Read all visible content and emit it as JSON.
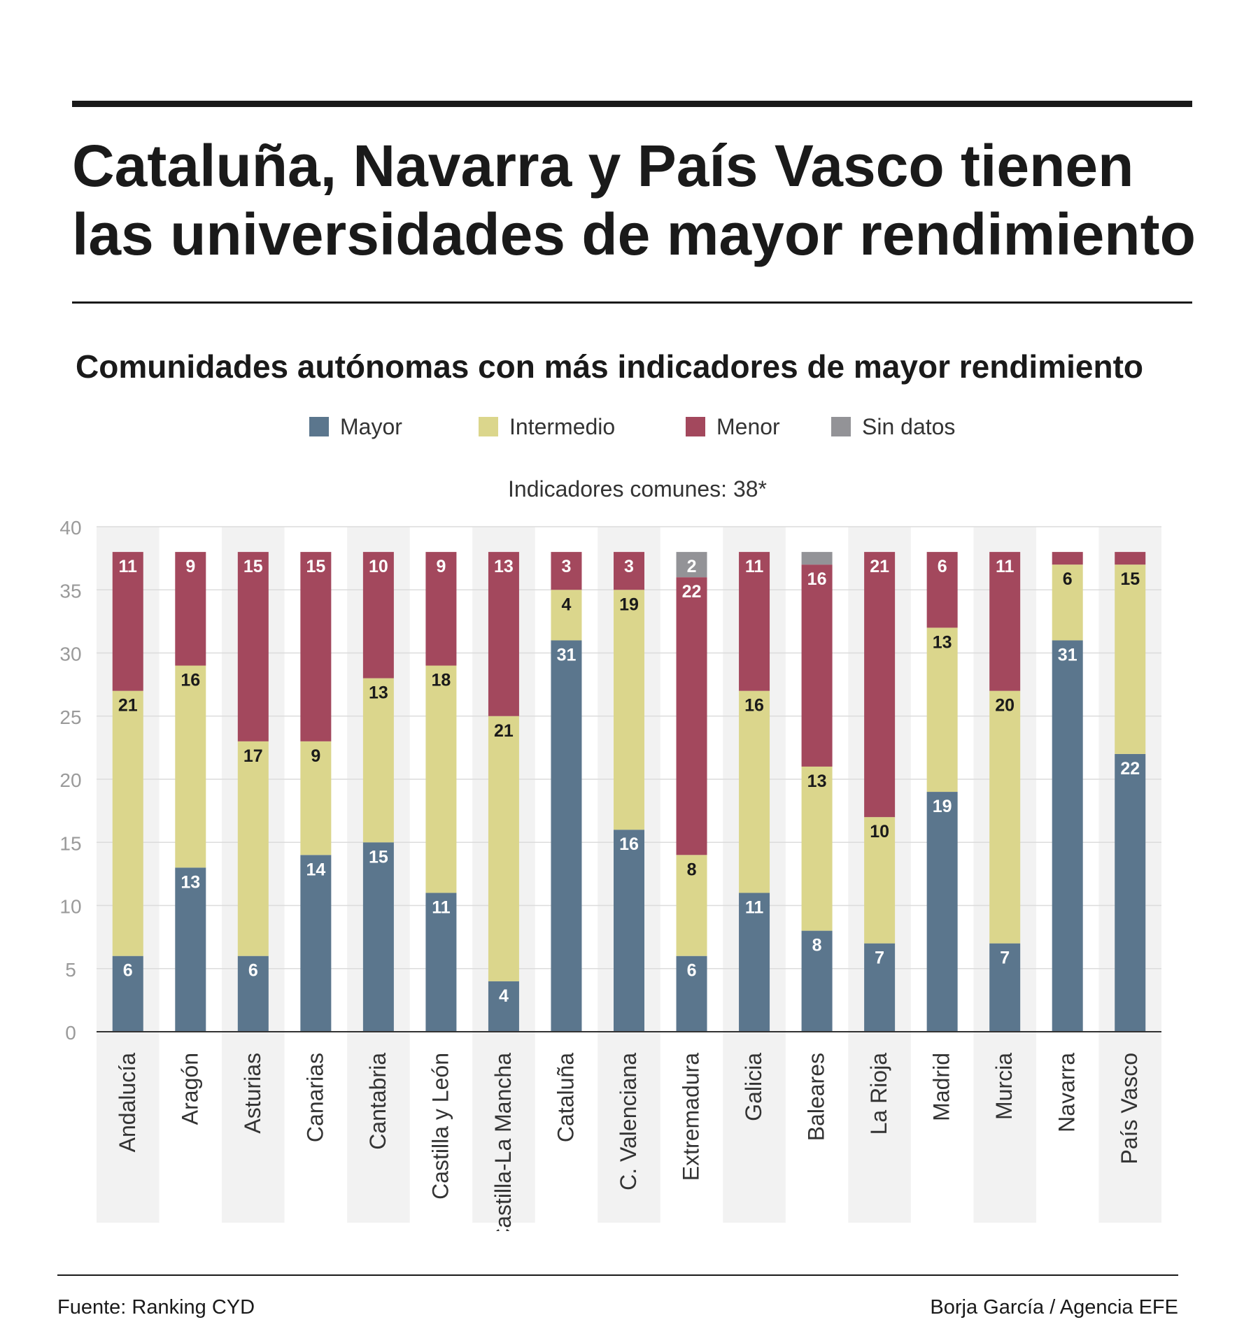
{
  "header": {
    "title_line1": "Cataluña, Navarra y País Vasco tienen",
    "title_line2": "las universidades de mayor rendimiento",
    "subtitle": "Comunidades autónomas con más indicadores de mayor rendimiento"
  },
  "footer": {
    "source": "Fuente: Ranking CYD",
    "credit": "Borja García / Agencia EFE"
  },
  "chart_data": {
    "type": "bar",
    "stacked": true,
    "annotation": "Indicadores comunes: 38*",
    "categories": [
      "Andalucía",
      "Aragón",
      "Asturias",
      "Canarias",
      "Cantabria",
      "Castilla y León",
      "Castilla-La Mancha",
      "Cataluña",
      "C. Valenciana",
      "Extremadura",
      "Galicia",
      "Baleares",
      "La Rioja",
      "Madrid",
      "Murcia",
      "Navarra",
      "País Vasco"
    ],
    "series": [
      {
        "name": "Mayor",
        "color": "#5b768d",
        "values": [
          6,
          13,
          6,
          14,
          15,
          11,
          4,
          31,
          16,
          6,
          11,
          8,
          7,
          19,
          7,
          31,
          22
        ]
      },
      {
        "name": "Intermedio",
        "color": "#dbd68c",
        "values": [
          21,
          16,
          17,
          9,
          13,
          18,
          21,
          4,
          19,
          8,
          16,
          13,
          10,
          13,
          20,
          6,
          15
        ]
      },
      {
        "name": "Menor",
        "color": "#a3485d",
        "values": [
          11,
          9,
          15,
          15,
          10,
          9,
          13,
          3,
          3,
          22,
          11,
          16,
          21,
          6,
          11,
          1,
          1
        ]
      },
      {
        "name": "Sin datos",
        "color": "#939397",
        "values": [
          0,
          0,
          0,
          0,
          0,
          0,
          0,
          0,
          0,
          2,
          0,
          1,
          0,
          0,
          0,
          0,
          0
        ]
      }
    ],
    "labels": [
      [
        "6",
        "13",
        "6",
        "14",
        "15",
        "11",
        "4",
        "31",
        "16",
        "6",
        "11",
        "8",
        "7",
        "19",
        "7",
        "31",
        "22"
      ],
      [
        "21",
        "16",
        "17",
        "9",
        "13",
        "18",
        "21",
        "4",
        "19",
        "8",
        "16",
        "13",
        "10",
        "13",
        "20",
        "6",
        "15"
      ],
      [
        "11",
        "9",
        "15",
        "15",
        "10",
        "9",
        "13",
        "3",
        "3",
        "22",
        "11",
        "16",
        "21",
        "6",
        "11",
        "",
        ""
      ],
      [
        "",
        "",
        "",
        "",
        "",
        "",
        "",
        "",
        "",
        "2",
        "",
        "",
        "",
        "",
        "",
        "",
        ""
      ]
    ],
    "yticks": [
      "0",
      "5",
      "10",
      "15",
      "20",
      "25",
      "30",
      "35",
      "40"
    ],
    "ylim": [
      0,
      40
    ],
    "legend_position": "top",
    "grid": true
  }
}
